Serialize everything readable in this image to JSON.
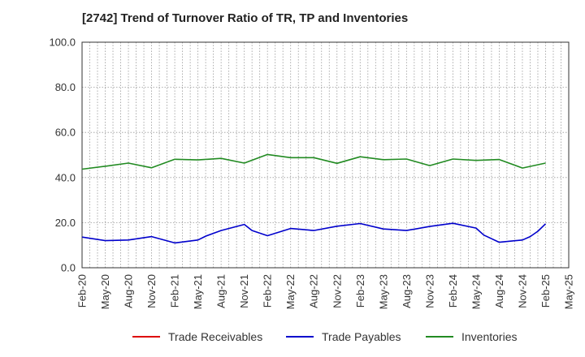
{
  "title": "[2742]  Trend of Turnover Ratio of TR, TP and Inventories",
  "chart_data": {
    "type": "line",
    "y_ticks": [
      "0.0",
      "20.0",
      "40.0",
      "60.0",
      "80.0",
      "100.0"
    ],
    "ylim": [
      0,
      100
    ],
    "x_ticks": [
      "Feb-20",
      "May-20",
      "Aug-20",
      "Nov-20",
      "Feb-21",
      "May-21",
      "Aug-21",
      "Nov-21",
      "Feb-22",
      "May-22",
      "Aug-22",
      "Nov-22",
      "Feb-23",
      "May-23",
      "Aug-23",
      "Nov-23",
      "Feb-24",
      "May-24",
      "Aug-24",
      "Nov-24",
      "Feb-25",
      "May-25"
    ],
    "x_months": [
      "2020-02",
      "2020-03",
      "2020-04",
      "2020-05",
      "2020-06",
      "2020-07",
      "2020-08",
      "2020-09",
      "2020-10",
      "2020-11",
      "2020-12",
      "2021-01",
      "2021-02",
      "2021-03",
      "2021-04",
      "2021-05",
      "2021-06",
      "2021-07",
      "2021-08",
      "2021-09",
      "2021-10",
      "2021-11",
      "2021-12",
      "2022-01",
      "2022-02",
      "2022-03",
      "2022-04",
      "2022-05",
      "2022-06",
      "2022-07",
      "2022-08",
      "2022-09",
      "2022-10",
      "2022-11",
      "2022-12",
      "2023-01",
      "2023-02",
      "2023-03",
      "2023-04",
      "2023-05",
      "2023-06",
      "2023-07",
      "2023-08",
      "2023-09",
      "2023-10",
      "2023-11",
      "2023-12",
      "2024-01",
      "2024-02",
      "2024-03",
      "2024-04",
      "2024-05",
      "2024-06",
      "2024-07",
      "2024-08",
      "2024-09",
      "2024-10",
      "2024-11",
      "2024-12",
      "2025-01",
      "2025-02",
      "2025-03",
      "2025-04",
      "2025-05"
    ],
    "grid": true,
    "legend_position": "bottom",
    "series": [
      {
        "name": "Trade Receivables",
        "color": "#dd0000",
        "points": []
      },
      {
        "name": "Trade Payables",
        "color": "#0000cc",
        "points": [
          [
            "2020-02",
            13.6
          ],
          [
            "2020-05",
            12.0
          ],
          [
            "2020-08",
            12.3
          ],
          [
            "2020-11",
            13.8
          ],
          [
            "2021-02",
            11.0
          ],
          [
            "2021-05",
            12.3
          ],
          [
            "2021-06",
            14.0
          ],
          [
            "2021-08",
            16.5
          ],
          [
            "2021-11",
            19.2
          ],
          [
            "2021-12",
            16.5
          ],
          [
            "2022-02",
            14.2
          ],
          [
            "2022-05",
            17.4
          ],
          [
            "2022-08",
            16.5
          ],
          [
            "2022-11",
            18.4
          ],
          [
            "2023-02",
            19.6
          ],
          [
            "2023-05",
            17.2
          ],
          [
            "2023-08",
            16.5
          ],
          [
            "2023-11",
            18.3
          ],
          [
            "2024-02",
            19.7
          ],
          [
            "2024-05",
            17.6
          ],
          [
            "2024-06",
            14.5
          ],
          [
            "2024-08",
            11.3
          ],
          [
            "2024-11",
            12.3
          ],
          [
            "2024-12",
            13.8
          ],
          [
            "2025-01",
            16.2
          ],
          [
            "2025-02",
            19.5
          ]
        ]
      },
      {
        "name": "Inventories",
        "color": "#228b22",
        "points": [
          [
            "2020-02",
            43.7
          ],
          [
            "2020-05",
            45.0
          ],
          [
            "2020-08",
            46.4
          ],
          [
            "2020-11",
            44.3
          ],
          [
            "2021-02",
            48.1
          ],
          [
            "2021-05",
            47.8
          ],
          [
            "2021-08",
            48.5
          ],
          [
            "2021-11",
            46.4
          ],
          [
            "2022-02",
            50.2
          ],
          [
            "2022-05",
            48.8
          ],
          [
            "2022-08",
            48.8
          ],
          [
            "2022-11",
            46.3
          ],
          [
            "2023-02",
            49.2
          ],
          [
            "2023-05",
            47.9
          ],
          [
            "2023-08",
            48.2
          ],
          [
            "2023-11",
            45.3
          ],
          [
            "2024-02",
            48.2
          ],
          [
            "2024-05",
            47.6
          ],
          [
            "2024-08",
            48.0
          ],
          [
            "2024-11",
            44.2
          ],
          [
            "2025-02",
            46.4
          ]
        ]
      }
    ]
  }
}
